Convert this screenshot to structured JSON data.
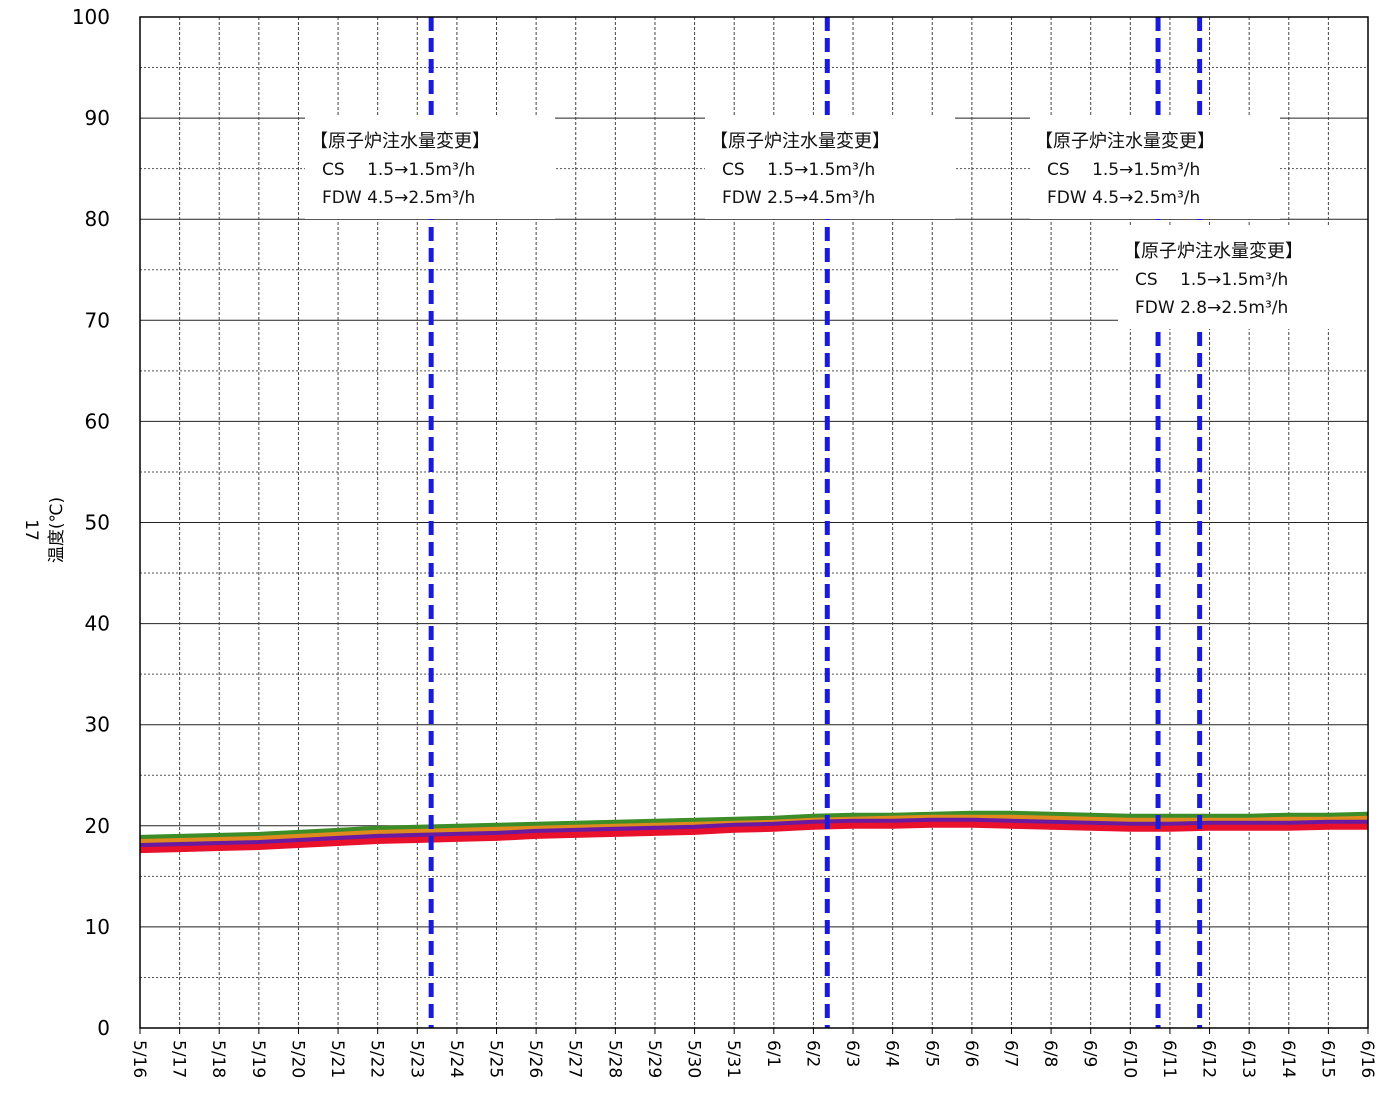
{
  "chart_data": {
    "type": "line",
    "title": "",
    "xlabel": "",
    "ylabel": "温度(℃)",
    "ylabel_prefix": "17",
    "ylim": [
      0,
      100
    ],
    "yticks": [
      0,
      10,
      20,
      30,
      40,
      50,
      60,
      70,
      80,
      90,
      100
    ],
    "x_categories": [
      "5/16",
      "5/17",
      "5/18",
      "5/19",
      "5/20",
      "5/21",
      "5/22",
      "5/23",
      "5/24",
      "5/25",
      "5/26",
      "5/27",
      "5/28",
      "5/29",
      "5/30",
      "5/31",
      "6/1",
      "6/2",
      "6/3",
      "6/4",
      "6/5",
      "6/6",
      "6/7",
      "6/8",
      "6/9",
      "6/10",
      "6/11",
      "6/12",
      "6/13",
      "6/14",
      "6/15",
      "6/16"
    ],
    "grid": true,
    "colors": {
      "event_line": "#1a1adc",
      "series_green": "#3c8c28",
      "series_orange": "#e08a1e",
      "series_purple": "#6a1aa0",
      "series_red": "#e8102a"
    },
    "series": [
      {
        "color": "#3c8c28",
        "values": [
          18.8,
          18.9,
          19.0,
          19.1,
          19.3,
          19.5,
          19.7,
          19.8,
          19.9,
          20.0,
          20.1,
          20.2,
          20.3,
          20.4,
          20.5,
          20.6,
          20.7,
          20.9,
          21.0,
          21.0,
          21.1,
          21.2,
          21.2,
          21.1,
          21.0,
          20.9,
          20.9,
          20.9,
          20.9,
          21.0,
          21.0,
          21.1
        ]
      },
      {
        "color": "#e08a1e",
        "values": [
          18.4,
          18.5,
          18.6,
          18.7,
          18.9,
          19.1,
          19.3,
          19.4,
          19.5,
          19.6,
          19.7,
          19.8,
          19.9,
          20.0,
          20.1,
          20.2,
          20.3,
          20.5,
          20.6,
          20.7,
          20.8,
          20.8,
          20.8,
          20.7,
          20.6,
          20.5,
          20.5,
          20.5,
          20.5,
          20.6,
          20.6,
          20.7
        ]
      },
      {
        "color": "#6a1aa0",
        "values": [
          18.0,
          18.1,
          18.2,
          18.3,
          18.5,
          18.7,
          18.9,
          19.0,
          19.1,
          19.2,
          19.4,
          19.5,
          19.6,
          19.7,
          19.8,
          20.0,
          20.1,
          20.3,
          20.4,
          20.4,
          20.5,
          20.5,
          20.4,
          20.3,
          20.2,
          20.1,
          20.1,
          20.2,
          20.2,
          20.2,
          20.3,
          20.3
        ]
      },
      {
        "color": "#e8102a",
        "values": [
          17.6,
          17.7,
          17.8,
          17.9,
          18.1,
          18.3,
          18.5,
          18.6,
          18.7,
          18.8,
          19.0,
          19.1,
          19.2,
          19.3,
          19.4,
          19.6,
          19.7,
          19.9,
          20.0,
          20.0,
          20.1,
          20.1,
          20.0,
          19.9,
          19.8,
          19.7,
          19.7,
          19.8,
          19.8,
          19.8,
          19.9,
          19.9
        ]
      }
    ],
    "event_lines": [
      {
        "x": "5/23",
        "offset_days": 0.35
      },
      {
        "x": "6/2",
        "offset_days": 0.35
      },
      {
        "x": "6/10",
        "offset_days": 0.7
      },
      {
        "x": "6/11",
        "offset_days": 0.75
      }
    ],
    "annotations": [
      {
        "title": "【原子炉注水量変更】",
        "line1": "CS　 1.5→1.5m³/h",
        "line2": "FDW  4.5→2.5m³/h"
      },
      {
        "title": "【原子炉注水量変更】",
        "line1": "CS　 1.5→1.5m³/h",
        "line2": "FDW  2.5→4.5m³/h"
      },
      {
        "title": "【原子炉注水量変更】",
        "line1": "CS　 1.5→1.5m³/h",
        "line2": "FDW  4.5→2.5m³/h"
      },
      {
        "title": "【原子炉注水量変更】",
        "line1": "CS　 1.5→1.5m³/h",
        "line2": "FDW  2.8→2.5m³/h"
      }
    ]
  }
}
